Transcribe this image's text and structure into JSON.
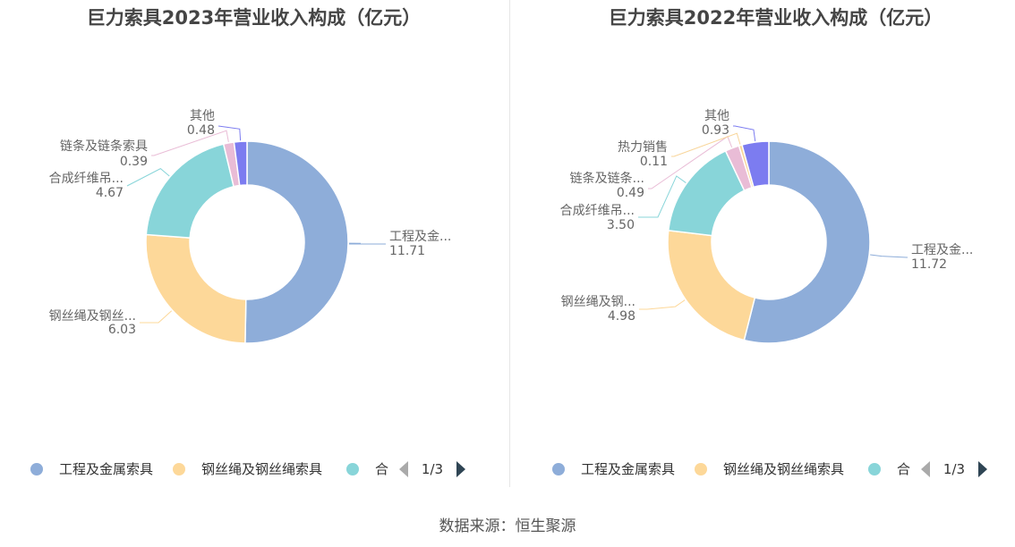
{
  "source": "数据来源：恒生聚源",
  "colors": {
    "gongcheng": "#8eadd9",
    "gangsi": "#fdd899",
    "hecheng": "#88d5d9",
    "liantiao": "#e9bcd6",
    "reli": "#f8d59a",
    "qita": "#7c7cf0"
  },
  "chart_data": [
    {
      "type": "pie",
      "variant": "donut",
      "title": "巨力索具2023年营业收入构成（亿元）",
      "slices": [
        {
          "name": "工程及金属索具",
          "label": "工程及金...",
          "value": 11.71,
          "display": "11.71",
          "color": "#8eadd9"
        },
        {
          "name": "钢丝绳及钢丝绳索具",
          "label": "钢丝绳及钢丝...",
          "value": 6.03,
          "display": "6.03",
          "color": "#fdd899"
        },
        {
          "name": "合成纤维吊装带",
          "label": "合成纤维吊...",
          "value": 4.67,
          "display": "4.67",
          "color": "#88d5d9"
        },
        {
          "name": "链条及链条索具",
          "label": "链条及链条索具",
          "value": 0.39,
          "display": "0.39",
          "color": "#e9bcd6"
        },
        {
          "name": "其他",
          "label": "其他",
          "value": 0.48,
          "display": "0.48",
          "color": "#7c7cf0"
        }
      ],
      "legend": {
        "items": [
          "工程及金属索具",
          "钢丝绳及钢丝绳索具",
          "合"
        ],
        "page": "1/3",
        "position": "bottom"
      }
    },
    {
      "type": "pie",
      "variant": "donut",
      "title": "巨力索具2022年营业收入构成（亿元）",
      "slices": [
        {
          "name": "工程及金属索具",
          "label": "工程及金...",
          "value": 11.72,
          "display": "11.72",
          "color": "#8eadd9"
        },
        {
          "name": "钢丝绳及钢丝绳索具",
          "label": "钢丝绳及钢...",
          "value": 4.98,
          "display": "4.98",
          "color": "#fdd899"
        },
        {
          "name": "合成纤维吊装带",
          "label": "合成纤维吊...",
          "value": 3.5,
          "display": "3.50",
          "color": "#88d5d9"
        },
        {
          "name": "链条及链条索具",
          "label": "链条及链条...",
          "value": 0.49,
          "display": "0.49",
          "color": "#e9bcd6"
        },
        {
          "name": "热力销售",
          "label": "热力销售",
          "value": 0.11,
          "display": "0.11",
          "color": "#f8d59a"
        },
        {
          "name": "其他",
          "label": "其他",
          "value": 0.93,
          "display": "0.93",
          "color": "#7c7cf0"
        }
      ],
      "legend": {
        "items": [
          "工程及金属索具",
          "钢丝绳及钢丝绳索具",
          "合"
        ],
        "page": "1/3",
        "position": "bottom"
      }
    }
  ]
}
